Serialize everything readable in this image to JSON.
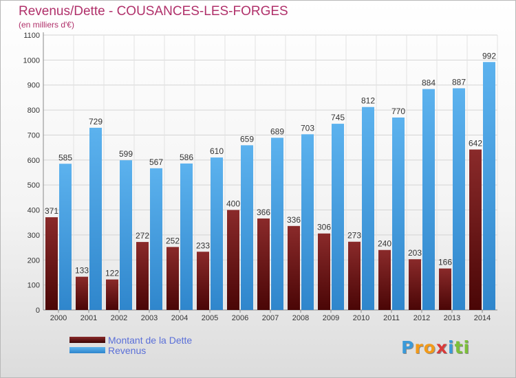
{
  "header": {
    "title": "Revenus/Dette - COUSANCES-LES-FORGES",
    "subtitle": "(en milliers d'€)"
  },
  "chart_data": {
    "type": "bar",
    "categories": [
      "2000",
      "2001",
      "2002",
      "2003",
      "2004",
      "2005",
      "2006",
      "2007",
      "2008",
      "2009",
      "2010",
      "2011",
      "2012",
      "2013",
      "2014"
    ],
    "series": [
      {
        "name": "Montant de la Dette",
        "color": "#7a1a1a",
        "values": [
          371,
          133,
          122,
          272,
          252,
          233,
          400,
          366,
          336,
          306,
          273,
          240,
          203,
          166,
          642
        ]
      },
      {
        "name": "Revenus",
        "color": "#4fa3e3",
        "values": [
          585,
          729,
          599,
          567,
          586,
          610,
          659,
          689,
          703,
          745,
          812,
          770,
          884,
          887,
          992
        ]
      }
    ],
    "ylim": [
      0,
      1100
    ],
    "yticks": [
      0,
      100,
      200,
      300,
      400,
      500,
      600,
      700,
      800,
      900,
      1000,
      1100
    ],
    "grid": true,
    "legend_position": "bottom-left"
  },
  "legend": {
    "items": [
      {
        "label": "Montant de la Dette"
      },
      {
        "label": "Revenus"
      }
    ]
  },
  "logo": {
    "letters": [
      "P",
      "r",
      "o",
      "x",
      "i",
      "t",
      "i"
    ],
    "colors": [
      "#3a9ad9",
      "#f29a1a",
      "#f29a1a",
      "#d93a3a",
      "#3a9ad9",
      "#7cbf3a",
      "#7cbf3a"
    ]
  }
}
